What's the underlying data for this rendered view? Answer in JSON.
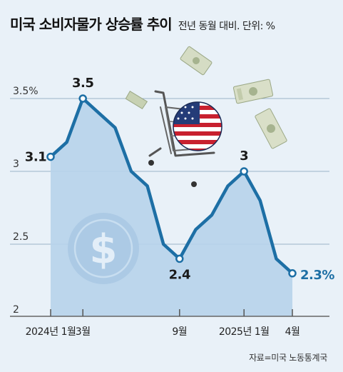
{
  "header": {
    "title": "미국 소비자물가 상승률 추이",
    "subtitle": "전년 동월 대비. 단위: %"
  },
  "source": "자료=미국 노동통계국",
  "colors": {
    "line": "#1d6fa5",
    "area": "#b7d3ea",
    "grid": "#9cb3c7",
    "last_label": "#1d6fa5",
    "background": "#e9f1f8"
  },
  "chart_data": {
    "type": "area",
    "title": "미국 소비자물가 상승률 추이",
    "subtitle": "전년 동월 대비. 단위: %",
    "x": [
      "2024-01",
      "2024-02",
      "2024-03",
      "2024-04",
      "2024-05",
      "2024-06",
      "2024-07",
      "2024-08",
      "2024-09",
      "2024-10",
      "2024-11",
      "2024-12",
      "2025-01",
      "2025-02",
      "2025-03",
      "2025-04"
    ],
    "series": [
      {
        "values": [
          3.1,
          3.2,
          3.5,
          3.4,
          3.3,
          3.0,
          2.9,
          2.5,
          2.4,
          2.6,
          2.7,
          2.9,
          3.0,
          2.8,
          2.4,
          2.3
        ]
      }
    ],
    "ylim": [
      2,
      3.9
    ],
    "yticks": [
      {
        "value": 3.5,
        "label": "3.5%"
      },
      {
        "value": 3,
        "label": "3"
      },
      {
        "value": 2.5,
        "label": "2.5"
      },
      {
        "value": 2,
        "label": "2"
      }
    ],
    "xticks": [
      {
        "index": 0,
        "label": "2024년 1월"
      },
      {
        "index": 2,
        "label": "3월"
      },
      {
        "index": 8,
        "label": "9월"
      },
      {
        "index": 12,
        "label": "2025년 1월"
      },
      {
        "index": 15,
        "label": "4월"
      }
    ],
    "annotations": [
      {
        "index": 0,
        "label": "3.1"
      },
      {
        "index": 2,
        "label": "3.5"
      },
      {
        "index": 8,
        "label": "2.4"
      },
      {
        "index": 12,
        "label": "3"
      },
      {
        "index": 15,
        "label": "2.3%"
      }
    ],
    "grid": true
  },
  "decorations": [
    "dollar-coin-icon",
    "shopping-cart-icon",
    "us-flag-ball-icon",
    "banknote-icon"
  ]
}
